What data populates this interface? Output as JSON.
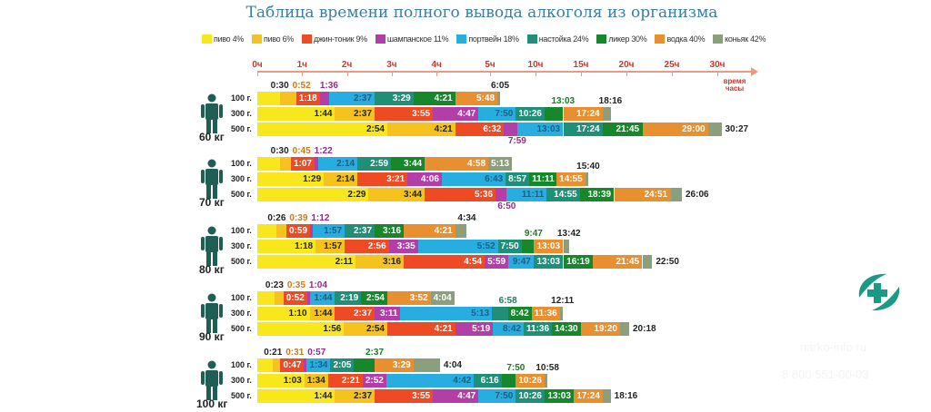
{
  "chart_data": {
    "type": "bar",
    "title": "Таблица времени полного вывода алкоголя из организма",
    "xlabel": "время часы",
    "x_ticks": [
      {
        "label": "0ч",
        "h": 0
      },
      {
        "label": "1ч",
        "h": 1
      },
      {
        "label": "2ч",
        "h": 2
      },
      {
        "label": "3ч",
        "h": 3
      },
      {
        "label": "4ч",
        "h": 4
      },
      {
        "label": "5ч",
        "h": 5
      },
      {
        "label": "10ч",
        "h": 10
      },
      {
        "label": "15ч",
        "h": 15
      },
      {
        "label": "20ч",
        "h": 20
      },
      {
        "label": "25ч",
        "h": 25
      },
      {
        "label": "30ч",
        "h": 30
      }
    ],
    "legend": [
      {
        "name": "пиво 4%",
        "color": "#f8e71c"
      },
      {
        "name": "пиво 6%",
        "color": "#f6c21e"
      },
      {
        "name": "джин-тоник 9%",
        "color": "#ee4a23"
      },
      {
        "name": "шампанское 11%",
        "color": "#b23ea8"
      },
      {
        "name": "портвейн 18%",
        "color": "#28ade0"
      },
      {
        "name": "настойка 24%",
        "color": "#1f8f77"
      },
      {
        "name": "ликер 30%",
        "color": "#16872a"
      },
      {
        "name": "водка 40%",
        "color": "#e8902f"
      },
      {
        "name": "коньяк 42%",
        "color": "#8c9f7c"
      }
    ],
    "groups": [
      {
        "weight": "60 кг",
        "rows": [
          {
            "dose": "100 г.",
            "times": [
              "0:30",
              "0:52",
              "1:18",
              "1:36",
              "2:37",
              "3:29",
              "4:21",
              "5:48",
              "6:05"
            ],
            "pos": [
              "a",
              "a",
              "i",
              "a",
              "i",
              "i",
              "i",
              "i",
              "a"
            ]
          },
          {
            "dose": "300 г.",
            "times": [
              "1:44",
              "2:37",
              "3:55",
              "4:47",
              "7:50",
              "10:26",
              "13:03",
              "17:24",
              "18:16"
            ],
            "pos": [
              "i",
              "i",
              "i",
              "i",
              "i",
              "i",
              "a",
              "i",
              "a"
            ]
          },
          {
            "dose": "500 г.",
            "times": [
              "2:54",
              "4:21",
              "6:32",
              "7:59",
              "13:03",
              "17:24",
              "21:45",
              "29:00",
              "30:27"
            ],
            "pos": [
              "i",
              "i",
              "i",
              "b",
              "i",
              "i",
              "i",
              "i",
              "r"
            ]
          }
        ]
      },
      {
        "weight": "70 кг",
        "rows": [
          {
            "dose": "100 г.",
            "times": [
              "0:30",
              "0:45",
              "1:07",
              "1:22",
              "2:14",
              "2:59",
              "3:44",
              "4:58",
              "5:13"
            ],
            "pos": [
              "a",
              "a",
              "i",
              "a",
              "i",
              "i",
              "i",
              "i",
              "i"
            ]
          },
          {
            "dose": "300 г.",
            "times": [
              "1:29",
              "2:14",
              "3:21",
              "4:06",
              "6:43",
              "8:57",
              "11:11",
              "14:55",
              "15:40"
            ],
            "pos": [
              "i",
              "i",
              "i",
              "i",
              "i",
              "i",
              "i",
              "i",
              "a"
            ]
          },
          {
            "dose": "500 г.",
            "times": [
              "2:29",
              "3:44",
              "5:36",
              "6:50",
              "11:11",
              "14:55",
              "18:39",
              "24:51",
              "26:06"
            ],
            "pos": [
              "i",
              "i",
              "i",
              "b",
              "i",
              "i",
              "i",
              "i",
              "r"
            ]
          }
        ]
      },
      {
        "weight": "80 кг",
        "rows": [
          {
            "dose": "100 г.",
            "times": [
              "0:26",
              "0:39",
              "0:59",
              "1:12",
              "1:57",
              "2:37",
              "3:16",
              "4:21",
              "4:34"
            ],
            "pos": [
              "a",
              "a",
              "i",
              "a",
              "i",
              "i",
              "i",
              "i",
              "a"
            ]
          },
          {
            "dose": "300 г.",
            "times": [
              "1:18",
              "1:57",
              "2:56",
              "3:35",
              "5:52",
              "7:50",
              "9:47",
              "13:03",
              "13:42"
            ],
            "pos": [
              "i",
              "i",
              "i",
              "i",
              "i",
              "i",
              "a",
              "i",
              "a"
            ]
          },
          {
            "dose": "500 г.",
            "times": [
              "2:11",
              "3:16",
              "4:54",
              "5:59",
              "9:47",
              "13:03",
              "16:19",
              "21:45",
              "22:50"
            ],
            "pos": [
              "i",
              "i",
              "i",
              "i",
              "i",
              "i",
              "i",
              "i",
              "r"
            ]
          }
        ]
      },
      {
        "weight": "90 кг",
        "rows": [
          {
            "dose": "100 г.",
            "times": [
              "0:23",
              "0:35",
              "0:52",
              "1:04",
              "1:44",
              "2:19",
              "2:54",
              "3:52",
              "4:04"
            ],
            "pos": [
              "a",
              "a",
              "i",
              "a",
              "i",
              "i",
              "i",
              "i",
              "i"
            ]
          },
          {
            "dose": "300 г.",
            "times": [
              "1:10",
              "1:44",
              "2:37",
              "3:11",
              "5:13",
              "6:58",
              "8:42",
              "11:36",
              "12:11"
            ],
            "pos": [
              "i",
              "i",
              "i",
              "i",
              "i",
              "a",
              "i",
              "i",
              "a"
            ]
          },
          {
            "dose": "500 г.",
            "times": [
              "1:56",
              "2:54",
              "4:21",
              "5:19",
              "8:42",
              "11:36",
              "14:30",
              "19:20",
              "20:18"
            ],
            "pos": [
              "i",
              "i",
              "i",
              "i",
              "i",
              "i",
              "i",
              "i",
              "r"
            ]
          }
        ]
      },
      {
        "weight": "100 кг",
        "rows": [
          {
            "dose": "100 г.",
            "times": [
              "0:21",
              "0:31",
              "0:47",
              "0:57",
              "1:34",
              "2:05",
              "2:37",
              "3:29",
              "4:04"
            ],
            "pos": [
              "a",
              "a",
              "i",
              "a",
              "i",
              "i",
              "a",
              "i",
              "r"
            ]
          },
          {
            "dose": "300 г.",
            "times": [
              "1:03",
              "1:34",
              "2:21",
              "2:52",
              "4:42",
              "6:16",
              "7:50",
              "10:26",
              "10:58"
            ],
            "pos": [
              "i",
              "i",
              "i",
              "i",
              "i",
              "i",
              "a",
              "i",
              "a"
            ]
          },
          {
            "dose": "500 г.",
            "times": [
              "1:44",
              "2:37",
              "3:55",
              "4:47",
              "7:50",
              "10:26",
              "13:03",
              "17:24",
              "18:16"
            ],
            "pos": [
              "i",
              "i",
              "i",
              "i",
              "i",
              "i",
              "i",
              "i",
              "r"
            ]
          }
        ]
      }
    ]
  },
  "watermark": {
    "site": "narko-info.ru",
    "phone": "8 800 551-00-03"
  }
}
